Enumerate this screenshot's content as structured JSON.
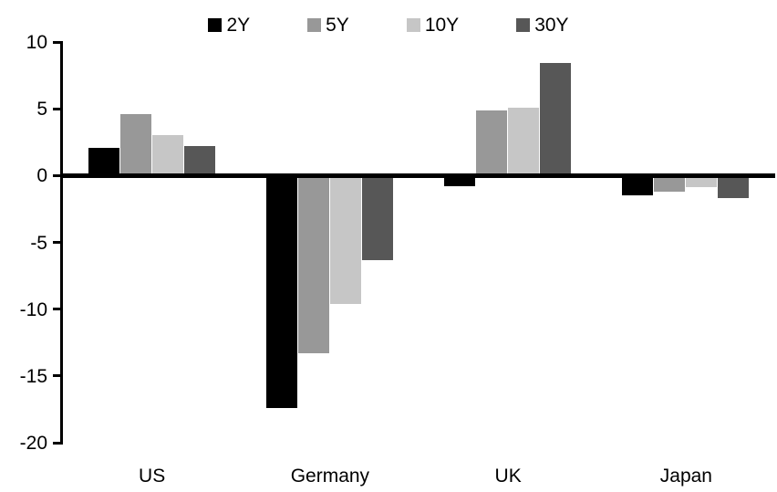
{
  "chart_data": {
    "type": "bar",
    "title": "",
    "xlabel": "",
    "ylabel": "",
    "categories": [
      "US",
      "Germany",
      "UK",
      "Japan"
    ],
    "series": [
      {
        "name": "2Y",
        "color": "#000000",
        "values": [
          2.1,
          -17.4,
          -0.8,
          -1.5
        ]
      },
      {
        "name": "5Y",
        "color": "#989898",
        "values": [
          4.6,
          -13.3,
          4.9,
          -1.2
        ]
      },
      {
        "name": "10Y",
        "color": "#c6c6c6",
        "values": [
          3.0,
          -9.6,
          5.1,
          -0.9
        ]
      },
      {
        "name": "30Y",
        "color": "#575757",
        "values": [
          2.2,
          -6.3,
          8.4,
          -1.7
        ]
      }
    ],
    "ylim": [
      -20,
      10
    ],
    "yticks": [
      10,
      5,
      0,
      -5,
      -10,
      -15,
      -20
    ],
    "grid": false,
    "legend_position": "top",
    "axis_color": "#000000",
    "background_color": "#ffffff"
  }
}
